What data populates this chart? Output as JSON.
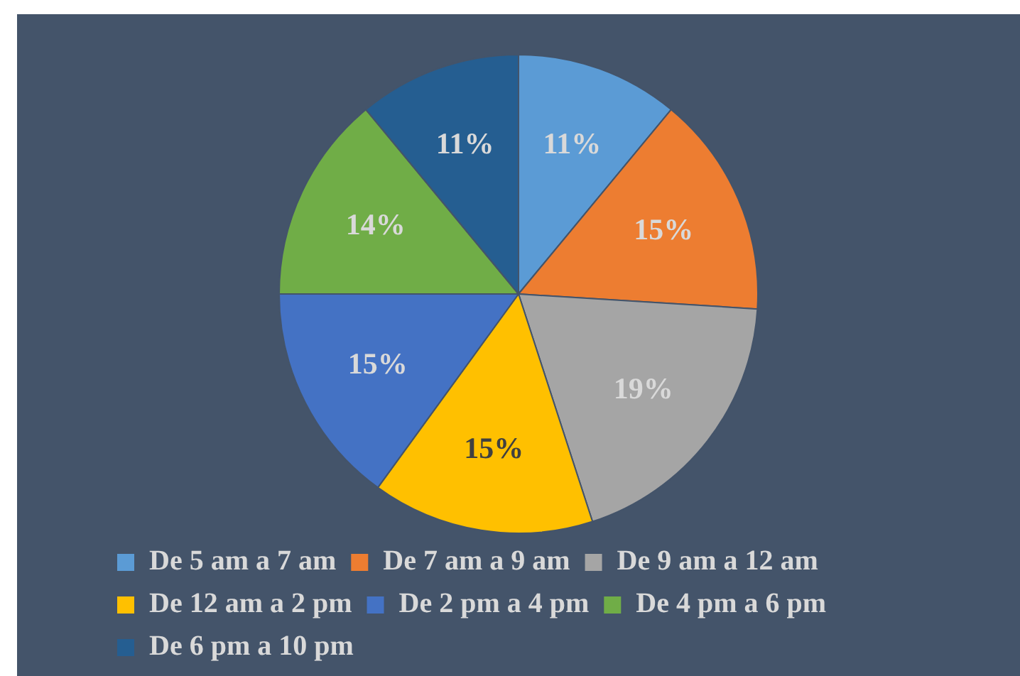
{
  "chart_data": {
    "type": "pie",
    "categories": [
      "De 5 am a 7 am",
      "De 7 am a 9 am",
      "De 9 am a 12 am",
      "De 12 am a 2 pm",
      "De 2 pm a 4 pm",
      "De 4 pm a 6 pm",
      "De 6 pm a 10 pm"
    ],
    "values": [
      11,
      15,
      19,
      15,
      15,
      14,
      11
    ],
    "value_labels": [
      "11%",
      "15%",
      "19%",
      "15%",
      "15%",
      "14%",
      "11%"
    ],
    "colors": [
      "#5b9bd5",
      "#ed7d31",
      "#a5a5a5",
      "#ffc000",
      "#4472c4",
      "#70ad47",
      "#255e91"
    ],
    "legend": "bottom"
  }
}
